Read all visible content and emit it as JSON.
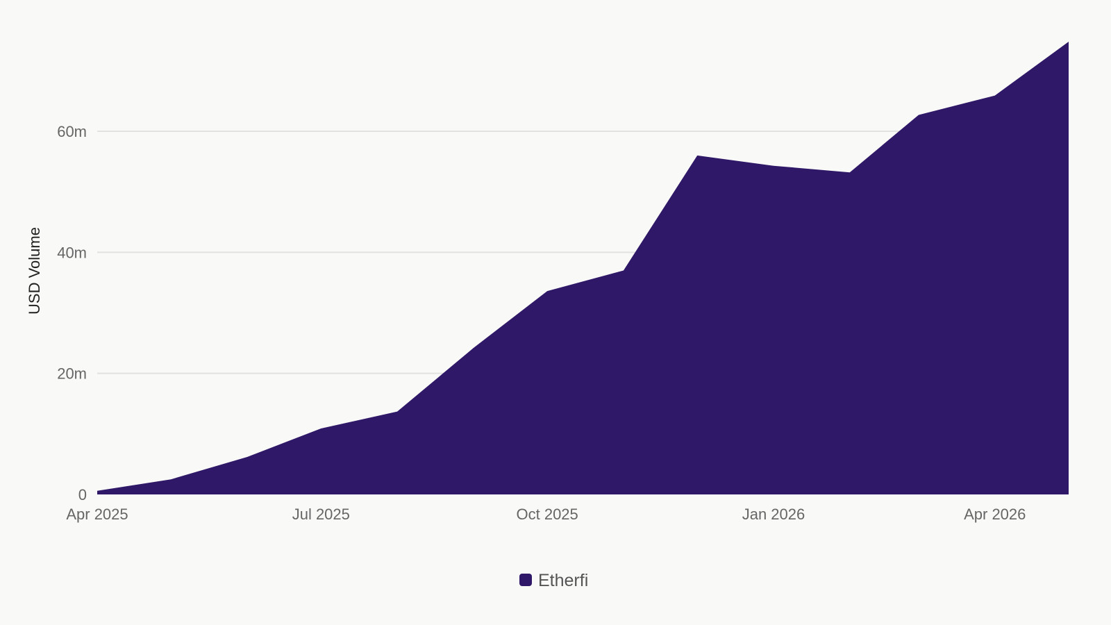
{
  "chart_data": {
    "type": "area",
    "title": "",
    "xlabel": "",
    "ylabel": "USD Volume",
    "x": [
      "2025-04-01",
      "2025-05-01",
      "2025-06-01",
      "2025-07-01",
      "2025-08-01",
      "2025-09-01",
      "2025-10-01",
      "2025-11-01",
      "2025-12-01",
      "2026-01-01",
      "2026-02-01",
      "2026-03-01",
      "2026-04-01",
      "2026-05-01"
    ],
    "series": [
      {
        "name": "Etherfi",
        "color": "#2f1868",
        "values": [
          0.6,
          2.5,
          6.2,
          10.9,
          13.7,
          24.2,
          33.6,
          37.0,
          56.0,
          54.3,
          53.2,
          62.7,
          65.9,
          74.8
        ]
      }
    ],
    "ylim": [
      0,
      74.8
    ],
    "yticks": [
      {
        "value": 0,
        "label": "0"
      },
      {
        "value": 20,
        "label": "20m"
      },
      {
        "value": 40,
        "label": "40m"
      },
      {
        "value": 60,
        "label": "60m"
      }
    ],
    "xticks": [
      {
        "value": "2025-04-01",
        "label": "Apr 2025"
      },
      {
        "value": "2025-07-01",
        "label": "Jul 2025"
      },
      {
        "value": "2025-10-01",
        "label": "Oct 2025"
      },
      {
        "value": "2026-01-01",
        "label": "Jan 2026"
      },
      {
        "value": "2026-04-01",
        "label": "Apr 2026"
      }
    ],
    "grid": true,
    "legend": {
      "position": "bottom-center"
    }
  }
}
